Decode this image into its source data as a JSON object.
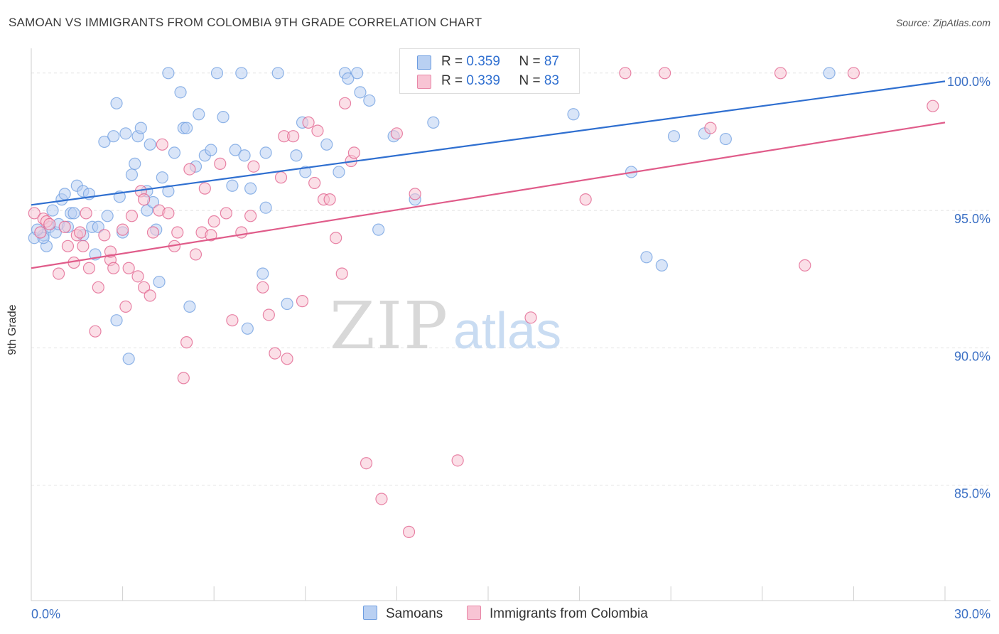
{
  "title": "SAMOAN VS IMMIGRANTS FROM COLOMBIA 9TH GRADE CORRELATION CHART",
  "source": "Source: ZipAtlas.com",
  "watermark": {
    "zip": "ZIP",
    "atlas": "atlas"
  },
  "legend": {
    "rows": [
      {
        "r_label": "R = ",
        "r_value": "0.359",
        "n_label": "N = ",
        "n_value": "87",
        "fill": "#b9d0f2",
        "stroke": "#6d9de0"
      },
      {
        "r_label": "R = ",
        "r_value": "0.339",
        "n_label": "N = ",
        "n_value": "83",
        "fill": "#f8c4d4",
        "stroke": "#e888a8"
      }
    ]
  },
  "bottom_legend": {
    "series1": "Samoans",
    "series2": "Immigrants from Colombia"
  },
  "chart_data": {
    "type": "scatter",
    "title": "SAMOAN VS IMMIGRANTS FROM COLOMBIA 9TH GRADE CORRELATION CHART",
    "xlabel": "",
    "ylabel": "9th Grade",
    "xlim": [
      0,
      30
    ],
    "ylim": [
      80.8,
      100.9
    ],
    "x_tick_labels": [
      "0.0%",
      "30.0%"
    ],
    "y_ticks": [
      85,
      90,
      95,
      100
    ],
    "y_tick_labels": [
      "85.0%",
      "90.0%",
      "95.0%",
      "100.0%"
    ],
    "grid": true,
    "legend_position": "top-center",
    "series": [
      {
        "name": "Samoans",
        "color": "#6d9de0",
        "fill": "#b9d0f2",
        "trend": [
          [
            0,
            95.2
          ],
          [
            30,
            99.7
          ]
        ],
        "points": [
          [
            0.1,
            94.0
          ],
          [
            0.4,
            94.1
          ],
          [
            0.5,
            93.7
          ],
          [
            0.4,
            94.0
          ],
          [
            0.6,
            94.4
          ],
          [
            0.7,
            95.0
          ],
          [
            0.8,
            94.2
          ],
          [
            1.0,
            95.4
          ],
          [
            1.1,
            95.6
          ],
          [
            1.3,
            94.9
          ],
          [
            1.4,
            94.9
          ],
          [
            1.5,
            95.9
          ],
          [
            1.7,
            94.1
          ],
          [
            1.7,
            95.7
          ],
          [
            1.9,
            95.6
          ],
          [
            2.0,
            94.4
          ],
          [
            2.1,
            93.4
          ],
          [
            2.2,
            94.4
          ],
          [
            2.4,
            97.5
          ],
          [
            2.5,
            94.8
          ],
          [
            2.7,
            97.7
          ],
          [
            2.8,
            91.0
          ],
          [
            2.8,
            98.9
          ],
          [
            3.0,
            94.2
          ],
          [
            3.1,
            97.8
          ],
          [
            3.2,
            89.6
          ],
          [
            3.3,
            96.3
          ],
          [
            3.4,
            96.7
          ],
          [
            3.5,
            97.7
          ],
          [
            3.6,
            98.0
          ],
          [
            3.8,
            95.7
          ],
          [
            3.8,
            95.0
          ],
          [
            3.9,
            97.4
          ],
          [
            4.0,
            95.3
          ],
          [
            4.1,
            94.3
          ],
          [
            4.2,
            92.4
          ],
          [
            4.3,
            96.2
          ],
          [
            4.5,
            95.7
          ],
          [
            4.5,
            100.0
          ],
          [
            4.7,
            97.1
          ],
          [
            4.9,
            99.3
          ],
          [
            5.0,
            98.0
          ],
          [
            5.1,
            98.0
          ],
          [
            5.2,
            91.5
          ],
          [
            5.5,
            98.5
          ],
          [
            5.7,
            97.0
          ],
          [
            5.9,
            97.2
          ],
          [
            6.1,
            100.0
          ],
          [
            6.3,
            98.4
          ],
          [
            6.6,
            95.9
          ],
          [
            6.7,
            97.2
          ],
          [
            6.9,
            100.0
          ],
          [
            7.0,
            97.0
          ],
          [
            7.1,
            90.7
          ],
          [
            7.2,
            95.8
          ],
          [
            7.7,
            97.1
          ],
          [
            7.7,
            95.1
          ],
          [
            7.6,
            92.7
          ],
          [
            8.1,
            100.0
          ],
          [
            8.4,
            91.6
          ],
          [
            8.7,
            97.0
          ],
          [
            8.9,
            98.2
          ],
          [
            9.0,
            96.4
          ],
          [
            9.7,
            97.4
          ],
          [
            10.1,
            96.4
          ],
          [
            10.3,
            100.0
          ],
          [
            10.4,
            99.8
          ],
          [
            10.7,
            100.0
          ],
          [
            10.8,
            99.3
          ],
          [
            11.1,
            99.0
          ],
          [
            11.4,
            94.3
          ],
          [
            11.9,
            97.7
          ],
          [
            12.6,
            95.4
          ],
          [
            13.2,
            98.2
          ],
          [
            17.8,
            98.5
          ],
          [
            19.7,
            96.4
          ],
          [
            20.2,
            93.3
          ],
          [
            20.7,
            93.0
          ],
          [
            21.1,
            97.7
          ],
          [
            22.1,
            97.8
          ],
          [
            22.8,
            97.6
          ],
          [
            26.2,
            100.0
          ],
          [
            0.2,
            94.3
          ],
          [
            0.9,
            94.5
          ],
          [
            1.2,
            94.4
          ],
          [
            2.9,
            95.5
          ],
          [
            5.4,
            96.6
          ]
        ]
      },
      {
        "name": "Immigrants from Colombia",
        "color": "#e05c8a",
        "fill": "#f8c4d4",
        "trend": [
          [
            0,
            92.9
          ],
          [
            30,
            98.2
          ]
        ],
        "points": [
          [
            0.1,
            94.9
          ],
          [
            0.4,
            94.7
          ],
          [
            0.5,
            94.6
          ],
          [
            0.6,
            94.5
          ],
          [
            0.9,
            92.7
          ],
          [
            1.1,
            94.4
          ],
          [
            1.2,
            93.7
          ],
          [
            1.4,
            93.1
          ],
          [
            1.5,
            94.1
          ],
          [
            1.7,
            93.7
          ],
          [
            1.8,
            94.9
          ],
          [
            1.9,
            92.9
          ],
          [
            2.1,
            90.6
          ],
          [
            2.2,
            92.2
          ],
          [
            2.4,
            94.1
          ],
          [
            2.6,
            93.2
          ],
          [
            2.7,
            92.9
          ],
          [
            3.0,
            94.3
          ],
          [
            3.1,
            91.5
          ],
          [
            3.2,
            92.9
          ],
          [
            3.3,
            94.8
          ],
          [
            3.5,
            92.6
          ],
          [
            3.6,
            95.7
          ],
          [
            3.7,
            92.2
          ],
          [
            3.9,
            91.9
          ],
          [
            4.0,
            94.2
          ],
          [
            4.2,
            95.0
          ],
          [
            4.3,
            97.4
          ],
          [
            4.5,
            94.9
          ],
          [
            4.7,
            93.7
          ],
          [
            4.8,
            94.2
          ],
          [
            5.0,
            88.9
          ],
          [
            5.1,
            90.2
          ],
          [
            5.2,
            96.5
          ],
          [
            5.4,
            93.4
          ],
          [
            5.6,
            94.2
          ],
          [
            5.7,
            95.8
          ],
          [
            5.9,
            94.1
          ],
          [
            6.0,
            94.6
          ],
          [
            6.2,
            96.7
          ],
          [
            6.4,
            94.9
          ],
          [
            6.6,
            91.0
          ],
          [
            6.9,
            94.2
          ],
          [
            7.2,
            94.8
          ],
          [
            7.3,
            96.6
          ],
          [
            7.6,
            92.2
          ],
          [
            7.8,
            91.2
          ],
          [
            8.0,
            89.8
          ],
          [
            8.2,
            96.2
          ],
          [
            8.3,
            97.7
          ],
          [
            8.4,
            89.6
          ],
          [
            8.6,
            97.7
          ],
          [
            8.9,
            91.7
          ],
          [
            9.1,
            98.2
          ],
          [
            9.3,
            96.0
          ],
          [
            9.4,
            97.9
          ],
          [
            9.6,
            95.4
          ],
          [
            9.8,
            95.4
          ],
          [
            10.0,
            94.0
          ],
          [
            10.2,
            92.7
          ],
          [
            10.3,
            98.9
          ],
          [
            10.5,
            96.8
          ],
          [
            10.6,
            97.1
          ],
          [
            11.0,
            85.8
          ],
          [
            11.5,
            84.5
          ],
          [
            12.0,
            97.8
          ],
          [
            12.4,
            83.3
          ],
          [
            12.6,
            95.6
          ],
          [
            14.0,
            85.9
          ],
          [
            15.0,
            100.0
          ],
          [
            16.4,
            91.1
          ],
          [
            18.2,
            95.4
          ],
          [
            19.5,
            100.0
          ],
          [
            20.8,
            100.0
          ],
          [
            22.3,
            98.0
          ],
          [
            24.6,
            100.0
          ],
          [
            25.4,
            93.0
          ],
          [
            27.0,
            100.0
          ],
          [
            29.6,
            98.8
          ],
          [
            0.3,
            94.2
          ],
          [
            1.6,
            94.2
          ],
          [
            2.6,
            93.5
          ],
          [
            3.7,
            95.4
          ]
        ]
      }
    ]
  }
}
